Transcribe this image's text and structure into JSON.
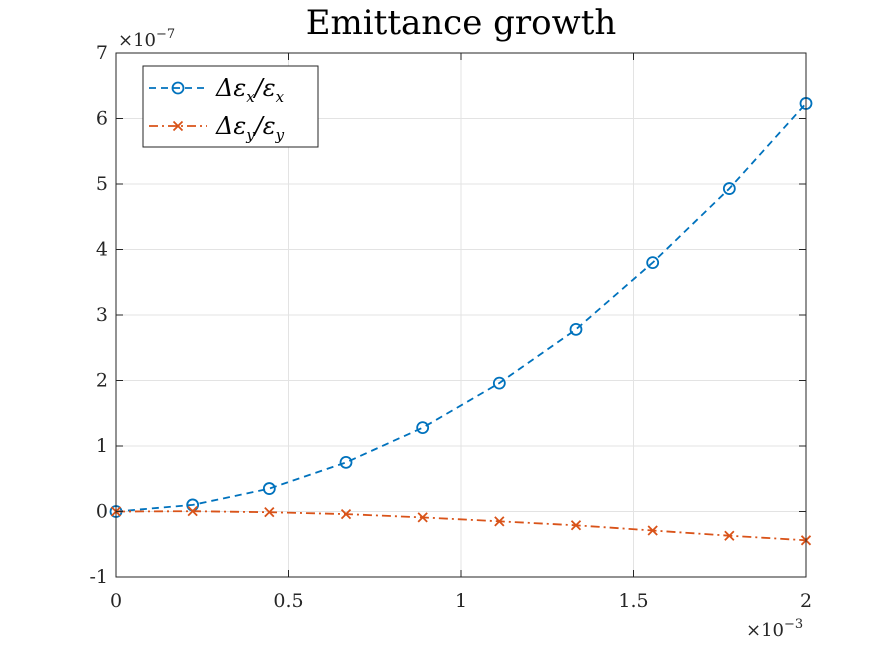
{
  "chart_data": {
    "type": "line",
    "title": "Emittance growth",
    "xlabel": "",
    "ylabel": "",
    "x_multiplier": "×10",
    "x_multiplier_exp": "−3",
    "y_multiplier": "×10",
    "y_multiplier_exp": "−7",
    "xlim": [
      0,
      2
    ],
    "ylim": [
      -1,
      7
    ],
    "x_ticks": [
      0,
      0.5,
      1,
      1.5,
      2
    ],
    "x_tick_labels": [
      "0",
      "0.5",
      "1",
      "1.5",
      "2"
    ],
    "y_ticks": [
      -1,
      0,
      1,
      2,
      3,
      4,
      5,
      6,
      7
    ],
    "y_tick_labels": [
      "-1",
      "0",
      "1",
      "2",
      "3",
      "4",
      "5",
      "6",
      "7"
    ],
    "grid": true,
    "legend_position": "top-left",
    "x": [
      0,
      0.2222,
      0.4444,
      0.6667,
      0.8889,
      1.1111,
      1.3333,
      1.5556,
      1.7778,
      2.0
    ],
    "series": [
      {
        "name": "Δε_x/ε_x",
        "legend_main": "Δε",
        "legend_sub1": "x",
        "legend_slash": "/ε",
        "legend_sub2": "x",
        "color": "#0072BD",
        "line_style": "dashed",
        "marker": "circle",
        "values": [
          0.0,
          0.1,
          0.35,
          0.75,
          1.28,
          1.96,
          2.78,
          3.8,
          4.93,
          6.23
        ]
      },
      {
        "name": "Δε_y/ε_y",
        "legend_main": "Δε",
        "legend_sub1": "y",
        "legend_slash": "/ε",
        "legend_sub2": "y",
        "color": "#D95319",
        "line_style": "dashdot",
        "marker": "x",
        "values": [
          0.0,
          0.005,
          -0.01,
          -0.04,
          -0.09,
          -0.15,
          -0.21,
          -0.29,
          -0.37,
          -0.44
        ]
      }
    ]
  }
}
